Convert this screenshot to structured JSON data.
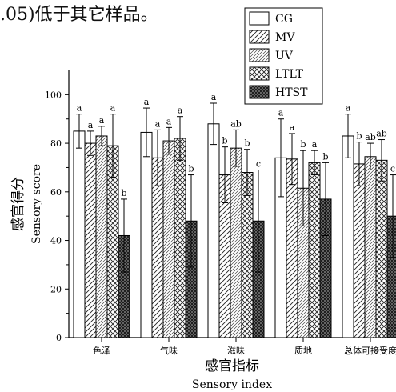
{
  "page": {
    "top_text": ".05)低于其它样品。"
  },
  "chart_data": {
    "type": "bar",
    "categories": [
      "色泽",
      "气味",
      "滋味",
      "质地",
      "总体可接受度"
    ],
    "xlabel_cn": "感官指标",
    "xlabel_en": "Sensory index",
    "ylabel_cn": "感官得分",
    "ylabel_en": "Sensory score",
    "ylim": [
      0,
      110
    ],
    "yticks": [
      0,
      20,
      40,
      60,
      80,
      100
    ],
    "grid": false,
    "legend_position": "top-right",
    "series": [
      {
        "name": "CG",
        "pattern": "empty",
        "values": [
          85,
          84.5,
          88,
          74,
          83
        ],
        "errors": [
          7,
          10,
          8.5,
          16,
          9
        ],
        "letters": [
          "a",
          "a",
          "a",
          "a",
          "a"
        ]
      },
      {
        "name": "MV",
        "pattern": "hatch",
        "values": [
          80,
          74,
          67,
          73.5,
          71.5
        ],
        "errors": [
          5,
          11.5,
          11.5,
          10.5,
          9
        ],
        "letters": [
          "a",
          "a",
          "b",
          "a",
          "b"
        ]
      },
      {
        "name": "UV",
        "pattern": "hatch-dense",
        "values": [
          83,
          81,
          78,
          61.5,
          74.5
        ],
        "errors": [
          4,
          5.5,
          7.5,
          15.5,
          5.5
        ],
        "letters": [
          "a",
          "a",
          "ab",
          "b",
          "ab"
        ]
      },
      {
        "name": "LTLT",
        "pattern": "cross",
        "values": [
          79,
          82,
          68,
          72,
          73
        ],
        "errors": [
          13,
          9,
          9.5,
          5,
          8.5
        ],
        "letters": [
          "a",
          "a",
          "b",
          "a",
          "ab"
        ]
      },
      {
        "name": "HTST",
        "pattern": "dense-cross",
        "values": [
          42,
          48,
          48,
          57,
          50
        ],
        "errors": [
          15,
          19,
          21,
          15,
          17
        ],
        "letters": [
          "b",
          "b",
          "c",
          "b",
          "c"
        ]
      }
    ]
  }
}
